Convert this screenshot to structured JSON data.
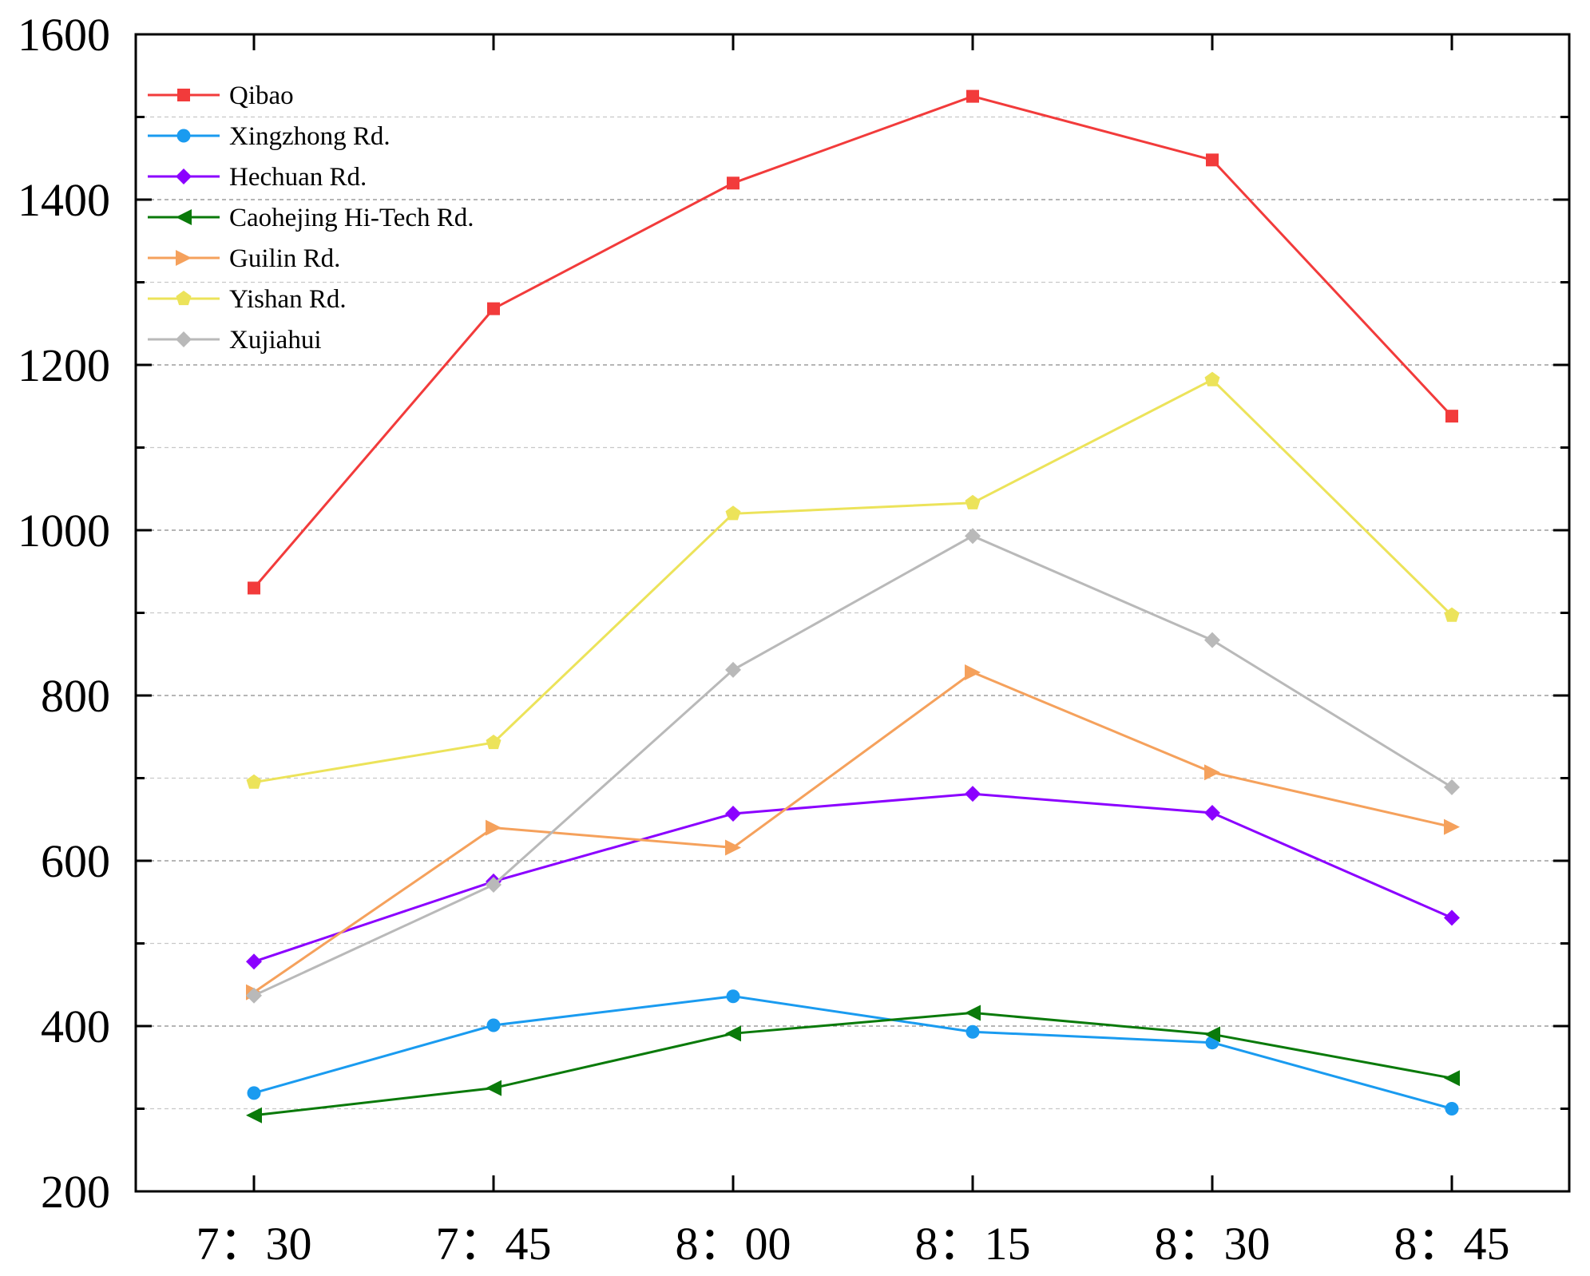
{
  "chart_data": {
    "type": "line",
    "title": "",
    "xlabel": "",
    "ylabel": "",
    "categories": [
      "7：30",
      "7：45",
      "8：00",
      "8：15",
      "8：30",
      "8：45"
    ],
    "ylim": [
      200,
      1600
    ],
    "yticks": [
      200,
      400,
      600,
      800,
      1000,
      1200,
      1400,
      1600
    ],
    "grid": "horizontal dashed",
    "legend_position": "top-left",
    "series": [
      {
        "name": "Qibao",
        "marker": "square",
        "color": "#f23b3b",
        "values": [
          930,
          1268,
          1420,
          1525,
          1448,
          1138
        ]
      },
      {
        "name": "Xingzhong Rd.",
        "marker": "circle",
        "color": "#1a9bf0",
        "values": [
          319,
          401,
          436,
          393,
          380,
          300
        ]
      },
      {
        "name": "Hechuan Rd.",
        "marker": "diamond",
        "color": "#8b00ff",
        "values": [
          478,
          575,
          657,
          681,
          658,
          531
        ]
      },
      {
        "name": "Caohejing Hi-Tech Rd.",
        "marker": "triangle-left",
        "color": "#0a7a0a",
        "values": [
          292,
          325,
          391,
          416,
          390,
          337
        ]
      },
      {
        "name": "Guilin Rd.",
        "marker": "triangle-right",
        "color": "#f5a15c",
        "values": [
          441,
          640,
          616,
          828,
          707,
          641
        ]
      },
      {
        "name": "Yishan Rd.",
        "marker": "pentagon",
        "color": "#ece35a",
        "values": [
          695,
          743,
          1020,
          1033,
          1182,
          897
        ]
      },
      {
        "name": "Xujiahui",
        "marker": "diamond",
        "color": "#b9b9b9",
        "values": [
          437,
          571,
          831,
          993,
          867,
          689
        ]
      }
    ]
  }
}
